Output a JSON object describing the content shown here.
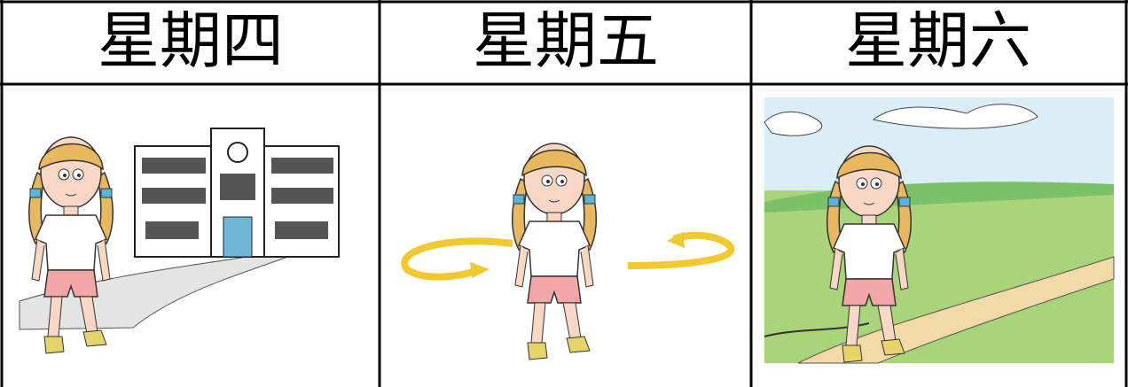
{
  "table": {
    "header": [
      "星期四",
      "星期五",
      "星期六"
    ]
  }
}
